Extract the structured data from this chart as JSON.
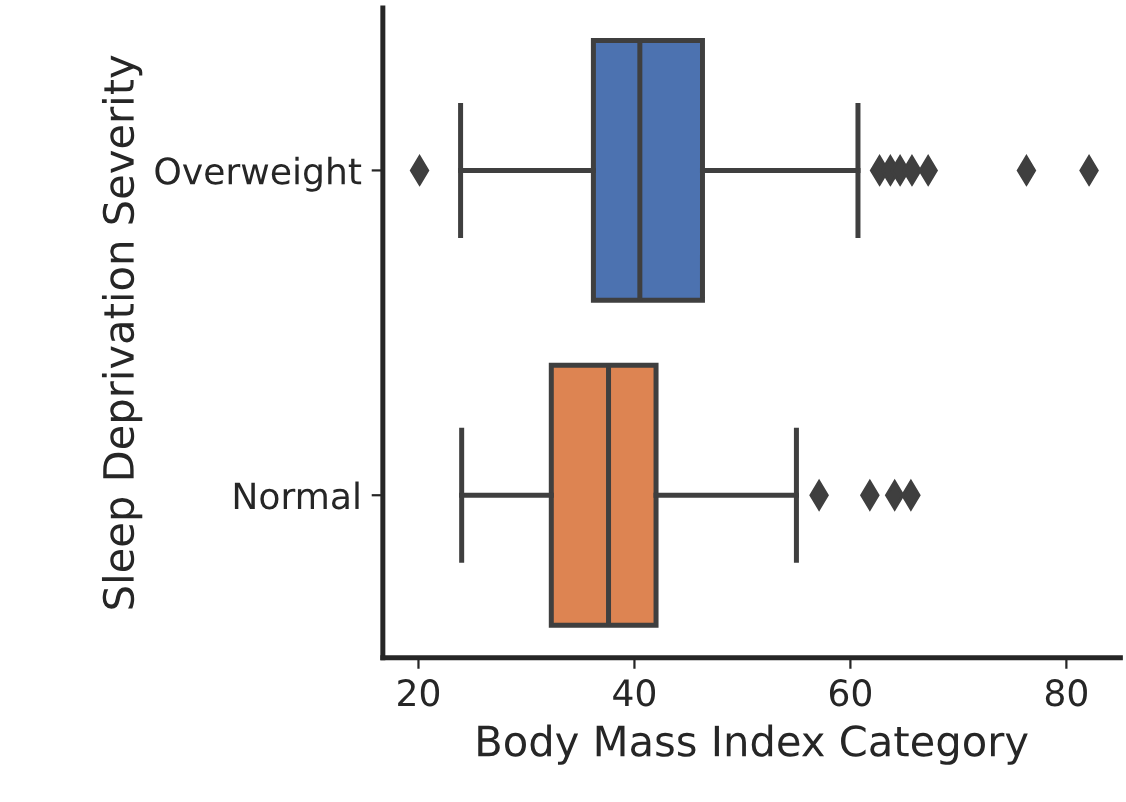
{
  "chart_data": {
    "type": "box",
    "orientation": "horizontal",
    "xlabel": "Body Mass Index Category",
    "ylabel": "Sleep Deprivation Severity",
    "categories": [
      "Overweight",
      "Normal"
    ],
    "xlim": [
      16.7,
      85
    ],
    "xticks": [
      20,
      40,
      60,
      80
    ],
    "grid": false,
    "series": [
      {
        "color": "#4c72b0",
        "boxes": [
          {
            "low": 23.9,
            "q1": 36.2,
            "median": 40.5,
            "q3": 46.3,
            "high": 60.7,
            "outliers": [
              20.1,
              62.7,
              63.7,
              64.6,
              65.7,
              67.2,
              76.3,
              82.1
            ]
          },
          null
        ]
      },
      {
        "color": "#dd8452",
        "boxes": [
          null,
          {
            "low": 24.0,
            "q1": 32.3,
            "median": 37.6,
            "q3": 42.0,
            "high": 55.0,
            "outliers": [
              57.1,
              61.8,
              64.1,
              65.6
            ]
          }
        ]
      }
    ]
  }
}
